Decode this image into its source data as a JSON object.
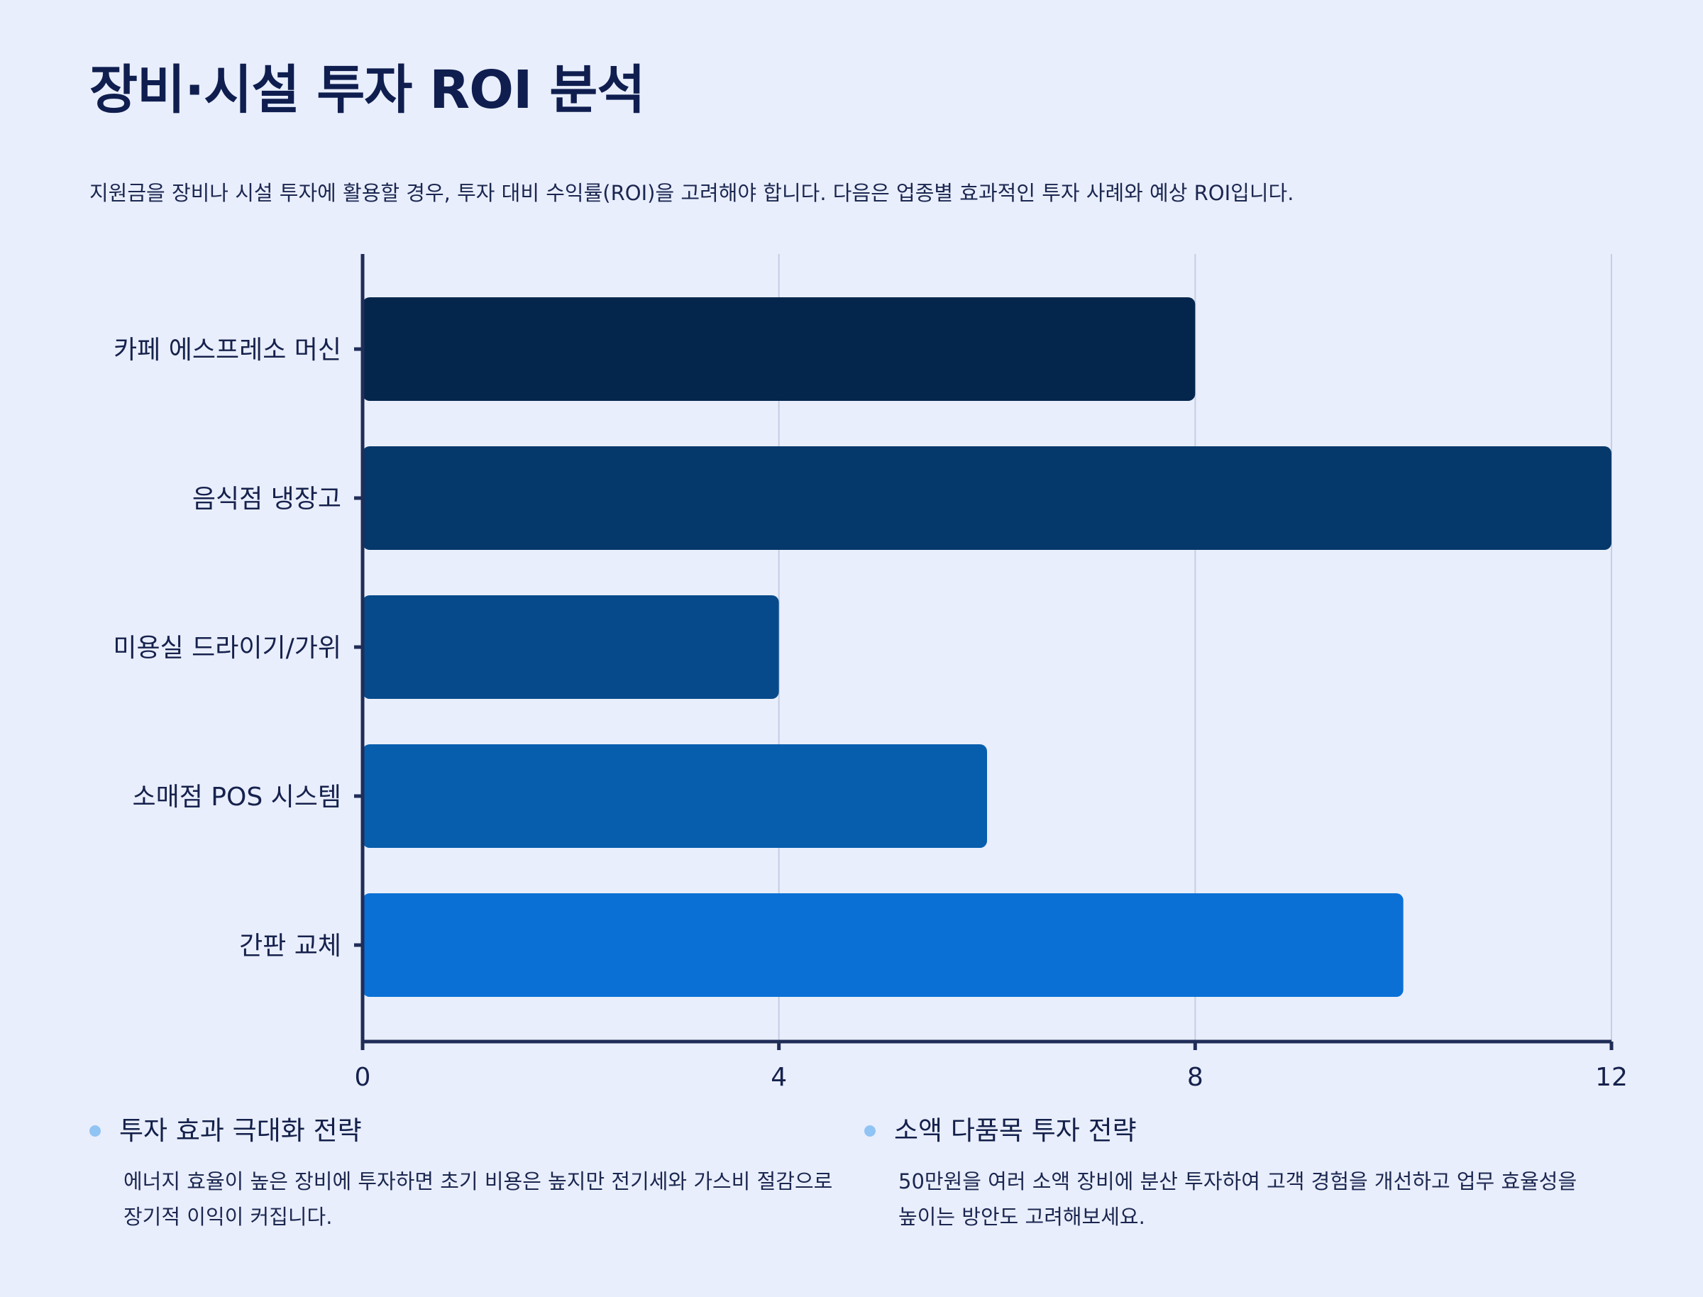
{
  "page": {
    "title": "장비·시설 투자 ROI 분석",
    "subtitle": "지원금을 장비나 시설 투자에 활용할 경우, 투자 대비 수익률(ROI)을 고려해야 합니다. 다음은 업종별 효과적인 투자 사례와 예상 ROI입니다."
  },
  "chart_data": {
    "type": "bar",
    "orientation": "horizontal",
    "categories": [
      "카페 에스프레소 머신",
      "음식점 냉장고",
      "미용실 드라이기/가위",
      "소매점 POS 시스템",
      "간판 교체"
    ],
    "values": [
      8,
      12,
      4,
      6,
      10
    ],
    "x_ticks": [
      0,
      4,
      8,
      12
    ],
    "xlim": [
      0,
      12
    ],
    "grid": true,
    "colors": [
      "#04264d",
      "#05386b",
      "#074a8b",
      "#075ead",
      "#0a70d5"
    ]
  },
  "notes": [
    {
      "title": "투자 효과 극대화 전략",
      "body": "에너지 효율이 높은 장비에 투자하면 초기 비용은 높지만 전기세와 가스비 절감으로 장기적 이익이 커집니다."
    },
    {
      "title": "소액 다품목 투자 전략",
      "body": "50만원을 여러 소액 장비에 분산 투자하여 고객 경험을 개선하고 업무 효율성을 높이는 방안도 고려해보세요."
    }
  ],
  "colors": {
    "background": "#e9eefc",
    "axis": "#1f2d57",
    "grid": "#c6cee2",
    "dot": "#90c4f4"
  }
}
